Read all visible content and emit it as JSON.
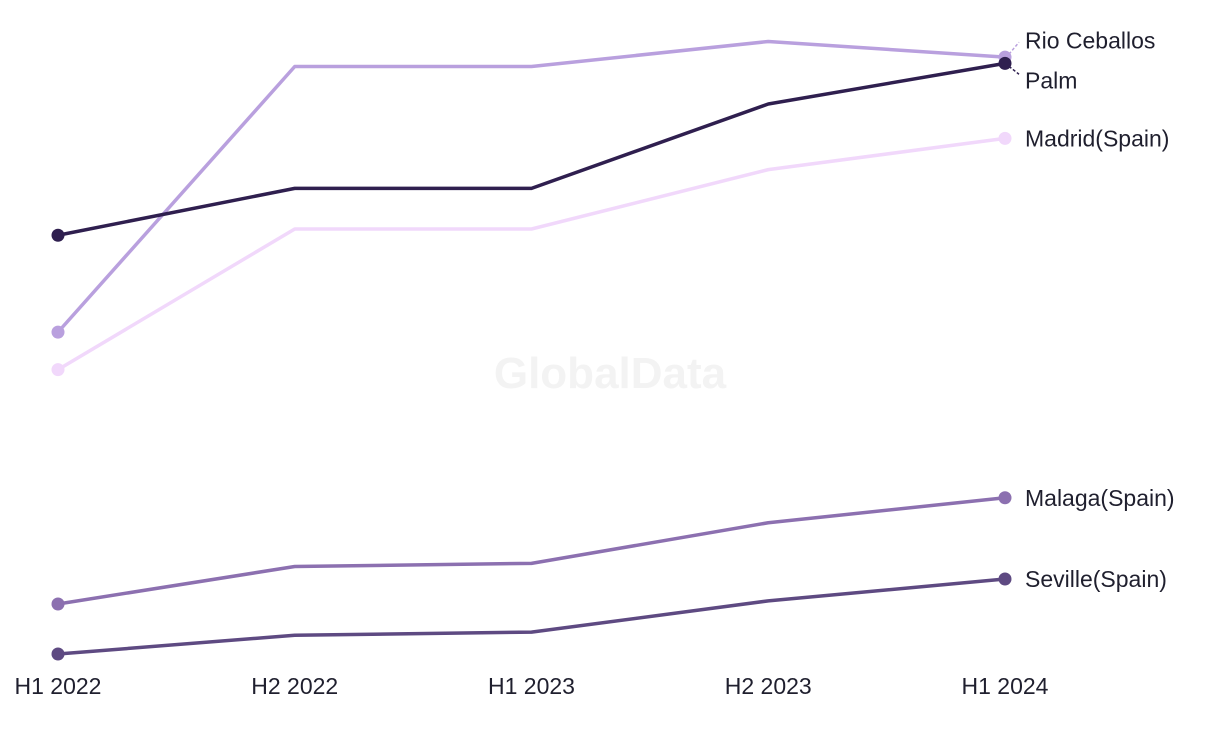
{
  "watermark": "GlobalData",
  "chart_data": {
    "type": "line",
    "x": [
      "H1 2022",
      "H2 2022",
      "H1 2023",
      "H2 2023",
      "H1 2024"
    ],
    "ylim": [
      0,
      100
    ],
    "grid": false,
    "legend": "end-of-line labels",
    "series": [
      {
        "name": "Rio Ceballos",
        "color": "#b9a0de",
        "values": [
          51.5,
          94,
          94,
          98,
          95.5
        ]
      },
      {
        "name": "Palm",
        "color": "#2f1f4f",
        "values": [
          67,
          74.5,
          74.5,
          88,
          94.5
        ]
      },
      {
        "name": "Madrid(Spain)",
        "color": "#f1d8fb",
        "values": [
          45.5,
          68,
          68,
          77.5,
          82.5
        ]
      },
      {
        "name": "Malaga(Spain)",
        "color": "#8c70b0",
        "values": [
          8,
          14,
          14.5,
          21,
          25
        ]
      },
      {
        "name": "Seville(Spain)",
        "color": "#5e4a82",
        "values": [
          0,
          3,
          3.5,
          8.5,
          12
        ]
      }
    ]
  }
}
